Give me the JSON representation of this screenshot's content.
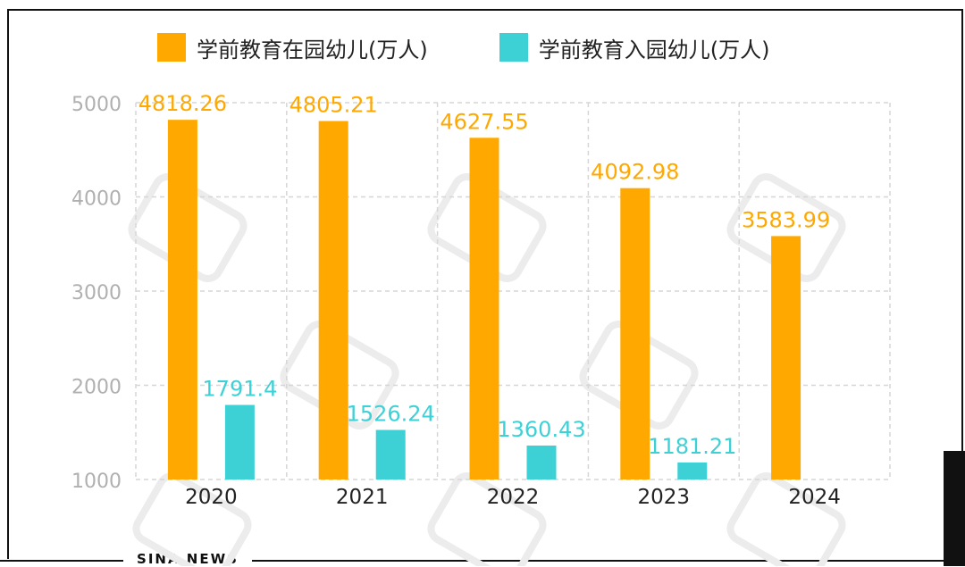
{
  "chart_data": {
    "type": "bar",
    "categories": [
      "2020",
      "2021",
      "2022",
      "2023",
      "2024"
    ],
    "series": [
      {
        "name": "学前教育在园幼儿(万人)",
        "color": "#ffa800",
        "values": [
          4818.26,
          4805.21,
          4627.55,
          4092.98,
          3583.99
        ],
        "labels": [
          "4818.26",
          "4805.21",
          "4627.55",
          "4092.98",
          "3583.99"
        ]
      },
      {
        "name": "学前教育入园幼儿(万人)",
        "color": "#3dd1d6",
        "values": [
          1791.4,
          1526.24,
          1360.43,
          1181.21,
          null
        ],
        "labels": [
          "1791.4",
          "1526.24",
          "1360.43",
          "1181.21",
          ""
        ]
      }
    ],
    "ylim": [
      1000,
      5000
    ],
    "yticks": [
      1000,
      2000,
      3000,
      4000,
      5000
    ],
    "ytick_labels": [
      "1000",
      "2000",
      "3000",
      "4000",
      "5000"
    ],
    "grid": true,
    "legend": "top"
  },
  "footer": {
    "source": "SINA NEWS"
  }
}
